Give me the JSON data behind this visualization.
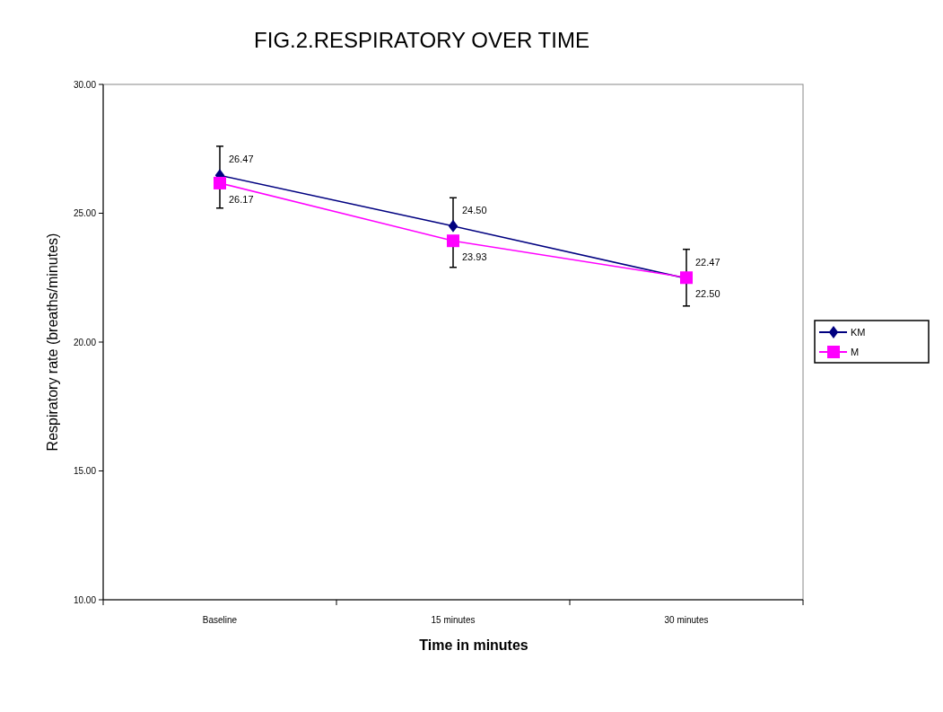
{
  "chart_data": {
    "type": "line",
    "title": "FIG.2.RESPIRATORY OVER TIME",
    "xlabel": "Time in minutes",
    "ylabel": "Respiratory rate (breaths/minutes)",
    "categories": [
      "Baseline",
      "15 minutes",
      "30 minutes"
    ],
    "series": [
      {
        "name": "KM",
        "color": "#000080",
        "marker": "diamond",
        "values": [
          26.47,
          24.5,
          22.47
        ],
        "value_labels": [
          "26.47",
          "24.50",
          "22.47"
        ],
        "errors": [
          [
            26.47,
            27.6
          ],
          [
            24.5,
            25.6
          ],
          [
            22.47,
            23.6
          ]
        ]
      },
      {
        "name": "M",
        "color": "#ff00ff",
        "marker": "square",
        "values": [
          26.17,
          23.93,
          22.5
        ],
        "value_labels": [
          "26.17",
          "23.93",
          "22.50"
        ],
        "errors": [
          [
            25.2,
            26.17
          ],
          [
            22.9,
            23.93
          ],
          [
            21.4,
            22.5
          ]
        ]
      }
    ],
    "ylim": [
      10,
      30
    ],
    "yticks": [
      {
        "value": 10,
        "label": "10.00"
      },
      {
        "value": 15,
        "label": "15.00"
      },
      {
        "value": 20,
        "label": "20.00"
      },
      {
        "value": 25,
        "label": "25.00"
      },
      {
        "value": 30,
        "label": "30.00"
      }
    ],
    "legend": "right",
    "grid": false
  }
}
